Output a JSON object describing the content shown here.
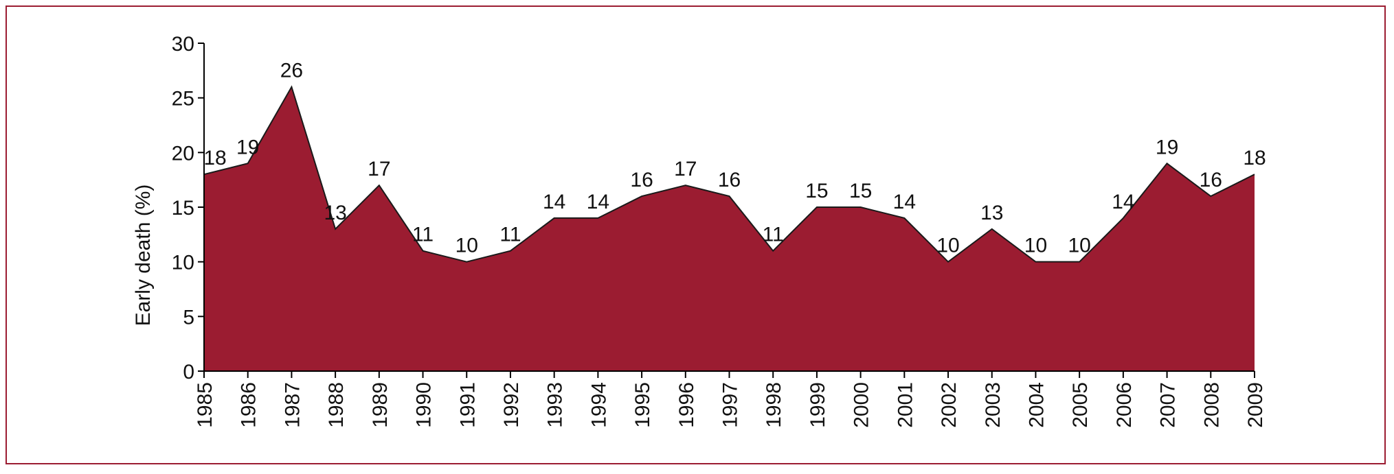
{
  "chart_data": {
    "type": "area",
    "title": "",
    "xlabel": "",
    "ylabel": "Early death (%)",
    "categories": [
      "1985",
      "1986",
      "1987",
      "1988",
      "1989",
      "1990",
      "1991",
      "1992",
      "1993",
      "1994",
      "1995",
      "1996",
      "1997",
      "1998",
      "1999",
      "2000",
      "2001",
      "2002",
      "2003",
      "2004",
      "2005",
      "2006",
      "2007",
      "2008",
      "2009"
    ],
    "values": [
      18,
      19,
      26,
      13,
      17,
      11,
      10,
      11,
      14,
      14,
      16,
      17,
      16,
      11,
      15,
      15,
      14,
      10,
      13,
      10,
      10,
      14,
      19,
      16,
      18
    ],
    "ylim": [
      0,
      30
    ],
    "yticks": [
      0,
      5,
      10,
      15,
      20,
      25,
      30
    ],
    "grid": false,
    "legend": "none",
    "colors": {
      "fill": "#9b1c31",
      "border": "#9b1c31",
      "axis": "#000000"
    }
  }
}
